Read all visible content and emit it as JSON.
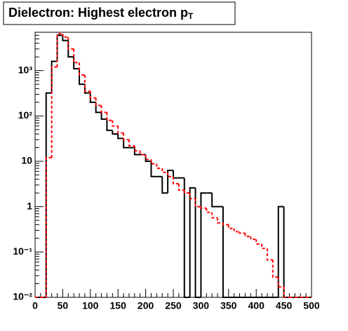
{
  "chart_data": {
    "type": "histogram",
    "title": [
      "Dielectron: Highest electron p",
      "T"
    ],
    "log_y": true,
    "bins": [
      0,
      10,
      20,
      30,
      40,
      50,
      60,
      70,
      80,
      90,
      100,
      110,
      120,
      130,
      140,
      150,
      160,
      170,
      180,
      190,
      200,
      210,
      220,
      230,
      240,
      250,
      260,
      270,
      280,
      290,
      300,
      310,
      320,
      330,
      340,
      350,
      360,
      370,
      380,
      390,
      400,
      410,
      420,
      430,
      440,
      450,
      460,
      470,
      480,
      490,
      500
    ],
    "series": [
      {
        "color": "#000000",
        "dashed": false,
        "values": [
          0,
          0,
          320,
          1600,
          6000,
          4600,
          2000,
          1100,
          500,
          320,
          200,
          120,
          85,
          48,
          40,
          32,
          20,
          20,
          14,
          14,
          10,
          4.6,
          4.6,
          2,
          6.3,
          4.3,
          4.3,
          0,
          2.6,
          0,
          2,
          2,
          1,
          1,
          0,
          0,
          0,
          0,
          0,
          0,
          0,
          0,
          0,
          0,
          1,
          0,
          0,
          0,
          0,
          0
        ]
      },
      {
        "color": "#ff0000",
        "dashed": true,
        "values": [
          0,
          0,
          12,
          1200,
          6500,
          5500,
          3000,
          1500,
          800,
          350,
          250,
          170,
          120,
          80,
          60,
          42,
          30,
          22,
          17,
          14,
          11,
          8.8,
          7,
          5.7,
          4.6,
          3.2,
          2.3,
          2,
          1.5,
          1,
          0.93,
          0.75,
          0.57,
          0.44,
          0.4,
          0.33,
          0.28,
          0.26,
          0.22,
          0.19,
          0.15,
          0.12,
          0.067,
          0.028,
          0.017,
          0,
          0,
          0,
          0,
          0
        ]
      }
    ],
    "xlim": [
      0,
      500
    ],
    "xticks": [
      0,
      50,
      100,
      150,
      200,
      250,
      300,
      350,
      400,
      450,
      500
    ],
    "ylim": [
      0.01,
      7000
    ],
    "yticks": [
      {
        "value": 0.01,
        "label": "10⁻²"
      },
      {
        "value": 0.1,
        "label": "10⁻¹"
      },
      1,
      10,
      {
        "value": 100,
        "label": "10²"
      },
      {
        "value": 1000,
        "label": "10³"
      }
    ]
  }
}
